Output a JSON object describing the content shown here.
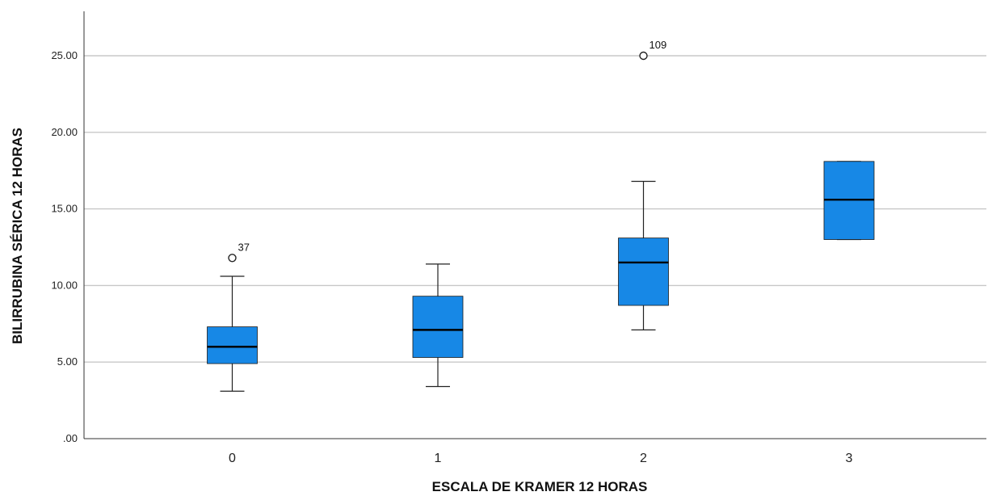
{
  "chart_data": {
    "type": "box",
    "title": "",
    "xlabel": "ESCALA DE KRAMER 12 HORAS",
    "ylabel": "BILIRRUBINA SÉRICA 12 HORAS",
    "ylim": [
      0,
      27.9
    ],
    "yticks": [
      ".00",
      "5.00",
      "10.00",
      "15.00",
      "20.00",
      "25.00"
    ],
    "grid": true,
    "box_color": "#1788e6",
    "categories": [
      "0",
      "1",
      "2",
      "3"
    ],
    "boxes": [
      {
        "category": "0",
        "whisker_low": 3.1,
        "q1": 4.9,
        "median": 6.0,
        "q3": 7.3,
        "whisker_high": 10.6,
        "outliers": [
          {
            "value": 11.8,
            "label": "37"
          }
        ]
      },
      {
        "category": "1",
        "whisker_low": 3.4,
        "q1": 5.3,
        "median": 7.1,
        "q3": 9.3,
        "whisker_high": 11.4,
        "outliers": []
      },
      {
        "category": "2",
        "whisker_low": 7.1,
        "q1": 8.7,
        "median": 11.5,
        "q3": 13.1,
        "whisker_high": 16.8,
        "outliers": [
          {
            "value": 25.0,
            "label": "109"
          }
        ]
      },
      {
        "category": "3",
        "whisker_low": 13.0,
        "q1": 13.0,
        "median": 15.6,
        "q3": 18.1,
        "whisker_high": 18.1,
        "outliers": []
      }
    ]
  }
}
